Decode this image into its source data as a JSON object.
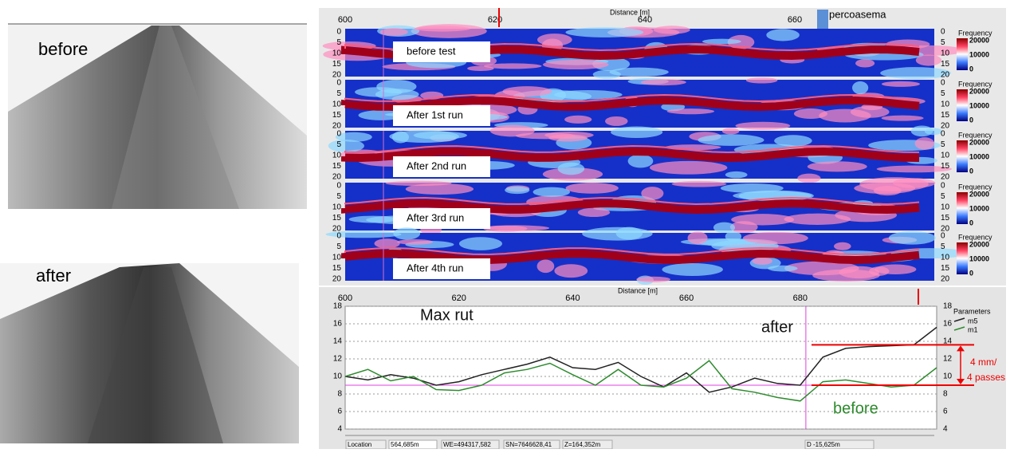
{
  "photos": {
    "before_label": "before",
    "after_label": "after"
  },
  "heatmaps": {
    "x_label": "Distance [m]",
    "x_ticks": [
      600,
      620,
      640,
      660
    ],
    "marker": "percoasema",
    "depth_ticks": [
      0,
      5,
      10,
      15,
      20
    ],
    "colorbar_title": "Frequency",
    "colorbar_labels": [
      "20000",
      "10000",
      "0"
    ],
    "panels": [
      "before test",
      "After 1st run",
      "After 2nd run",
      "After 3rd run",
      "After 4th run"
    ]
  },
  "chart_data": {
    "type": "line",
    "x_label": "Distance [m]",
    "legend_title": "Parameters",
    "x": [
      600,
      604,
      608,
      612,
      616,
      620,
      624,
      628,
      632,
      636,
      640,
      644,
      648,
      652,
      656,
      660,
      664,
      668,
      672,
      676,
      680,
      684,
      688,
      692,
      696,
      700,
      704
    ],
    "series": [
      {
        "name": "m5",
        "color": "#222222",
        "values": [
          10.0,
          9.6,
          10.2,
          9.8,
          9.0,
          9.4,
          10.2,
          10.8,
          11.4,
          12.2,
          11.0,
          10.8,
          11.6,
          10.0,
          8.8,
          10.4,
          8.2,
          8.8,
          9.8,
          9.2,
          9.0,
          12.2,
          13.2,
          13.4,
          13.5,
          13.6,
          15.6
        ]
      },
      {
        "name": "m1",
        "color": "#2e8b2e",
        "values": [
          10.0,
          10.8,
          9.5,
          10.0,
          8.5,
          8.4,
          9.0,
          10.4,
          10.8,
          11.5,
          10.2,
          9.0,
          10.8,
          9.0,
          8.8,
          9.8,
          11.8,
          8.6,
          8.2,
          7.6,
          7.2,
          9.4,
          9.6,
          9.2,
          8.8,
          9.0,
          11.0
        ]
      }
    ],
    "xlim": [
      600,
      704
    ],
    "ylim": [
      4,
      18
    ],
    "xticks": [
      600,
      620,
      640,
      660,
      680
    ],
    "yticks": [
      4,
      6,
      8,
      10,
      12,
      14,
      16,
      18
    ],
    "grid": true,
    "reference_y": 9,
    "marker_x": 681,
    "bracket": [
      9,
      13.6
    ],
    "annotations": [
      "Max rut",
      "after",
      "before",
      "4 mm/",
      "4 passes"
    ]
  },
  "status_bar": [
    "Location",
    "564,685m",
    "WE=494317,582",
    "SN=7646628,41",
    "Z=164,352m",
    "D -15,625m"
  ]
}
